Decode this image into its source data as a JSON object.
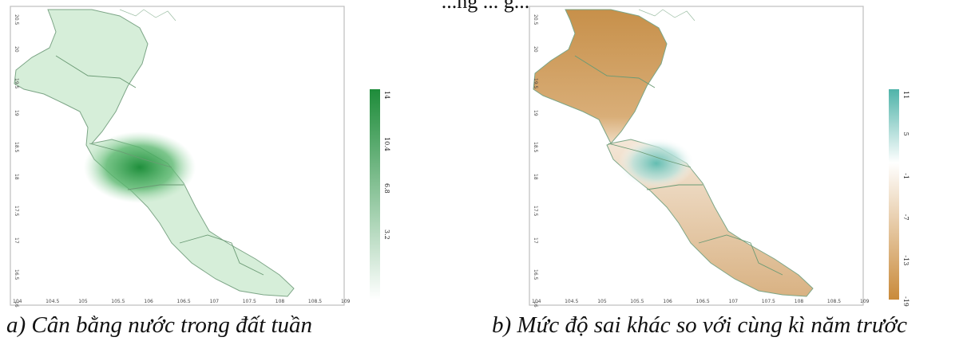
{
  "header_text": "...ng ... g...",
  "panels": [
    {
      "id": "a",
      "caption": "a) Cân bằng nước trong đất tuần",
      "colorbar": {
        "ticks": [
          "14",
          "10.4",
          "6.8",
          "3.2"
        ],
        "colors": [
          "#1e8c3a",
          "#ffffff"
        ]
      },
      "x_ticks": [
        "104",
        "104.5",
        "105",
        "105.5",
        "106",
        "106.5",
        "107",
        "107.5",
        "108",
        "108.5",
        "109"
      ],
      "y_ticks": [
        "20.5",
        "20",
        "19.5",
        "19",
        "18.5",
        "18",
        "17.5",
        "17",
        "16.5",
        "16"
      ]
    },
    {
      "id": "b",
      "caption": "b) Mức độ sai khác so với cùng kì năm trước",
      "colorbar": {
        "ticks": [
          "11",
          "5",
          "-1",
          "-7",
          "-13",
          "-19"
        ],
        "colors": [
          "#4fb3a9",
          "#ffffff",
          "#c98a3a"
        ]
      },
      "x_ticks": [
        "104",
        "104.5",
        "105",
        "105.5",
        "106",
        "106.5",
        "107",
        "107.5",
        "108",
        "108.5",
        "109"
      ],
      "y_ticks": [
        "20.5",
        "20",
        "19.5",
        "19",
        "18.5",
        "18",
        "17.5",
        "17",
        "16.5",
        "16"
      ]
    }
  ]
}
